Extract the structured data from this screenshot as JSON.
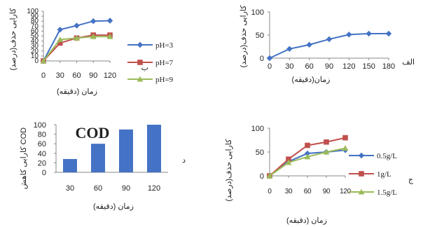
{
  "colors": {
    "blue": "#4472C4",
    "red": "#C0504D",
    "green": "#9BBB59",
    "axis": "#8a8a8a"
  },
  "chart_data": [
    {
      "id": "alef",
      "type": "line",
      "panel_letter": "الف",
      "xlabel": "زمان(دقیقه)",
      "ylabel": "کارایی حذف(درصد)",
      "x": [
        0,
        30,
        60,
        90,
        120,
        150,
        180
      ],
      "xticks": [
        "0",
        "30",
        "60",
        "90",
        "120",
        "150",
        "180"
      ],
      "yticks": [
        "0",
        "50",
        "100"
      ],
      "ylim": [
        0,
        100
      ],
      "grid": false,
      "series": [
        {
          "color": "blue",
          "marker": "diamond",
          "values": [
            0,
            20,
            29,
            41,
            51,
            53,
            53
          ]
        }
      ]
    },
    {
      "id": "be",
      "type": "line",
      "panel_letter": "ب",
      "xlabel": "زمان (دقیقه)",
      "ylabel": "کارایی حذف(درصد)",
      "x": [
        0,
        30,
        60,
        90,
        120
      ],
      "xticks": [
        "0",
        "30",
        "60",
        "90",
        "120"
      ],
      "yticks": [
        "0",
        "10",
        "20",
        "30",
        "40",
        "50",
        "60",
        "70",
        "80",
        "90",
        "100"
      ],
      "ylim": [
        0,
        100
      ],
      "grid": false,
      "legend_position": "right",
      "series": [
        {
          "name": "pH=3",
          "color": "blue",
          "marker": "diamond",
          "values": [
            0,
            63,
            71,
            80,
            81
          ]
        },
        {
          "name": "pH=7",
          "color": "red",
          "marker": "square",
          "values": [
            0,
            36,
            46,
            52,
            52
          ]
        },
        {
          "name": "pH=9",
          "color": "green",
          "marker": "triangle",
          "values": [
            0,
            43,
            46,
            49,
            49
          ]
        }
      ]
    },
    {
      "id": "dal",
      "type": "bar",
      "panel_letter": "د",
      "title": "COD",
      "xlabel": "زمان (دقیقه)",
      "ylabel": "کارایی کاهش COD",
      "categories": [
        "30",
        "60",
        "90",
        "120"
      ],
      "values": [
        28,
        60,
        90,
        100
      ],
      "yticks": [
        "0",
        "20",
        "40",
        "60",
        "80",
        "100"
      ],
      "ylim": [
        0,
        100
      ],
      "grid": false,
      "color": "blue"
    },
    {
      "id": "jim",
      "type": "line",
      "panel_letter": "ج",
      "xlabel": "زمان (دقیقه)",
      "ylabel": "کارایی حذف(درصد)",
      "x": [
        0,
        30,
        60,
        90,
        120
      ],
      "xticks": [
        "0",
        "30",
        "60",
        "90",
        "120"
      ],
      "yticks": [
        "0",
        "50",
        "100"
      ],
      "ylim": [
        0,
        100
      ],
      "grid": false,
      "legend_position": "right",
      "series": [
        {
          "name": "0.5g/L",
          "color": "blue",
          "marker": "diamond",
          "values": [
            0,
            30,
            47,
            50,
            54
          ]
        },
        {
          "name": "1g/L",
          "color": "red",
          "marker": "square",
          "values": [
            0,
            35,
            64,
            71,
            80
          ]
        },
        {
          "name": "1.5g/L",
          "color": "green",
          "marker": "triangle",
          "values": [
            0,
            28,
            40,
            50,
            58
          ]
        }
      ]
    }
  ]
}
